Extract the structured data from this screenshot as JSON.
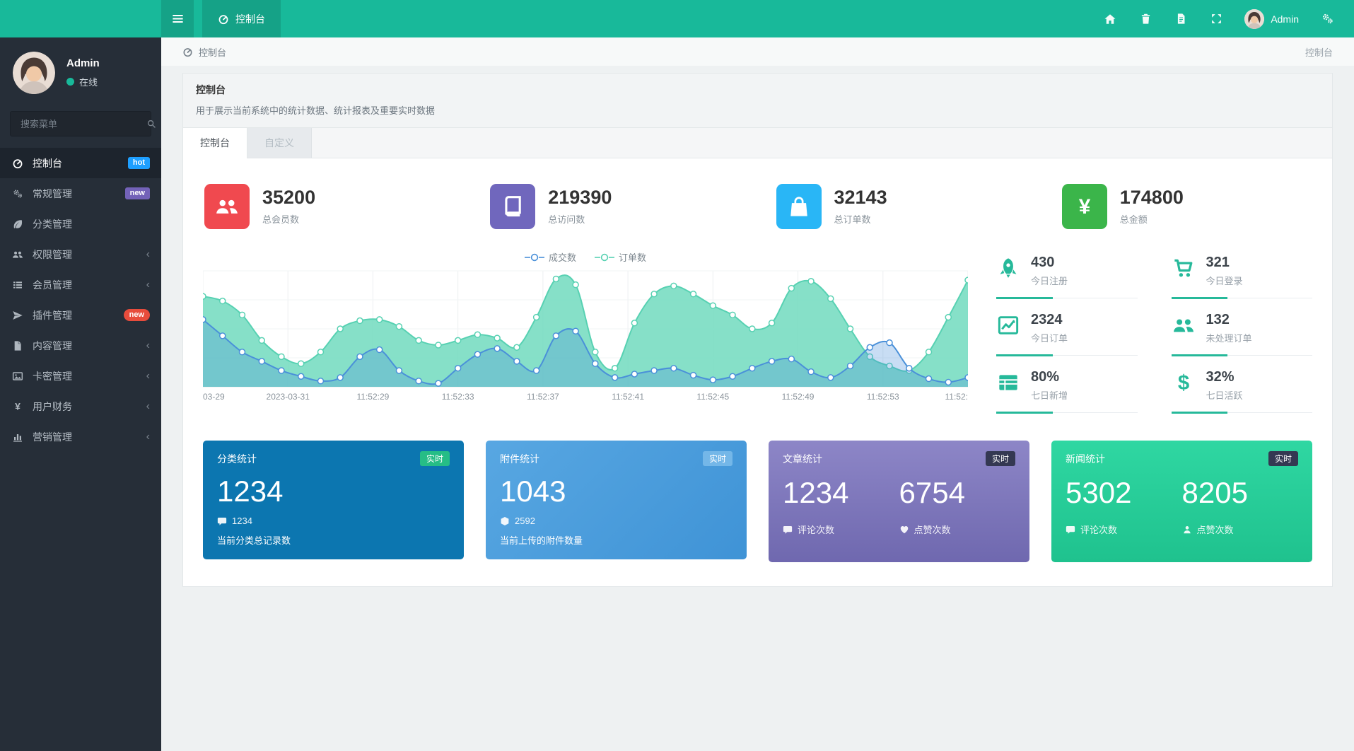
{
  "brand": {
    "accent": "#18b99a"
  },
  "topbar": {
    "tab_label": "控制台",
    "user_name": "Admin"
  },
  "sidebar": {
    "user": {
      "name": "Admin",
      "status": "在线",
      "status_color": "#18b99a"
    },
    "search_placeholder": "搜索菜单",
    "items": [
      {
        "label": "控制台",
        "icon": "dashboard-icon",
        "badge": {
          "text": "hot",
          "bg": "#1e9fff"
        },
        "active": true
      },
      {
        "label": "常规管理",
        "icon": "cogs-icon",
        "badge": {
          "text": "new",
          "bg": "#7362b8"
        }
      },
      {
        "label": "分类管理",
        "icon": "leaf-icon"
      },
      {
        "label": "权限管理",
        "icon": "users-icon",
        "arrow": "‹"
      },
      {
        "label": "会员管理",
        "icon": "list-icon",
        "arrow": "‹"
      },
      {
        "label": "插件管理",
        "icon": "paper-plane-icon",
        "badge": {
          "text": "new",
          "bg": "#e74c3c"
        }
      },
      {
        "label": "内容管理",
        "icon": "file-icon",
        "arrow": "‹"
      },
      {
        "label": "卡密管理",
        "icon": "image-icon",
        "arrow": "‹"
      },
      {
        "label": "用户财务",
        "icon": "yen-icon",
        "arrow": "‹"
      },
      {
        "label": "营销管理",
        "icon": "chart-bar-icon",
        "arrow": "‹"
      }
    ]
  },
  "breadcrumb": {
    "label": "控制台",
    "right": "控制台"
  },
  "panel": {
    "title": "控制台",
    "desc": "用于展示当前系统中的统计数据、统计报表及重要实时数据",
    "tabs": [
      {
        "label": "控制台"
      },
      {
        "label": "自定义"
      }
    ]
  },
  "stat_cards": [
    {
      "value": "35200",
      "label": "总会员数",
      "icon_bg": "#f0494f",
      "icon": "users-icon"
    },
    {
      "value": "219390",
      "label": "总访问数",
      "icon_bg": "#7067bd",
      "icon": "book-icon"
    },
    {
      "value": "32143",
      "label": "总订单数",
      "icon_bg": "#29b6f6",
      "icon": "shopping-bag-icon"
    },
    {
      "value": "174800",
      "label": "总金额",
      "icon_bg": "#3bb54a",
      "icon": "yen-icon"
    }
  ],
  "chart_data": {
    "type": "line",
    "smooth": true,
    "markers": true,
    "grid": true,
    "legend_position": "top",
    "ylim": [
      0,
      100
    ],
    "x_labels": [
      "03-29",
      "2023-03-31",
      "11:52:29",
      "11:52:33",
      "11:52:37",
      "11:52:41",
      "11:52:45",
      "11:52:49",
      "11:52:53",
      "11:52:"
    ],
    "series": [
      {
        "name": "成交数",
        "color": "#4a90d9",
        "fill": "rgba(74,144,217,0.30)",
        "values": [
          58,
          44,
          30,
          22,
          14,
          9,
          5,
          8,
          26,
          32,
          14,
          5,
          3,
          16,
          28,
          33,
          22,
          14,
          44,
          48,
          20,
          8,
          11,
          14,
          16,
          10,
          6,
          9,
          16,
          22,
          24,
          13,
          8,
          18,
          34,
          38,
          16,
          7,
          4,
          8
        ]
      },
      {
        "name": "订单数",
        "color": "#57d1b2",
        "fill": "rgba(113,218,190,0.85)",
        "values": [
          78,
          74,
          62,
          40,
          26,
          20,
          30,
          50,
          57,
          58,
          52,
          40,
          36,
          40,
          45,
          42,
          34,
          60,
          93,
          88,
          30,
          16,
          55,
          80,
          87,
          80,
          70,
          62,
          50,
          55,
          85,
          91,
          76,
          50,
          26,
          18,
          14,
          30,
          60,
          92
        ]
      }
    ]
  },
  "quick_stats": {
    "accent": "#26b99a",
    "items": [
      {
        "icon": "rocket-icon",
        "value": "430",
        "label": "今日注册"
      },
      {
        "icon": "cart-icon",
        "value": "321",
        "label": "今日登录"
      },
      {
        "icon": "chart-line-icon",
        "value": "2324",
        "label": "今日订单"
      },
      {
        "icon": "users-icon",
        "value": "132",
        "label": "未处理订单"
      },
      {
        "icon": "table-icon",
        "value": "80%",
        "label": "七日新增"
      },
      {
        "icon": "dollar-icon",
        "value": "32%",
        "label": "七日活跃"
      }
    ]
  },
  "bottom_cards": [
    {
      "title": "分类统计",
      "badge": "实时",
      "badge_bg": "#26bd86",
      "bg": "#0c76b0",
      "main": "1234",
      "sub_icon": "comment-icon",
      "sub_value": "1234",
      "desc": "当前分类总记录数"
    },
    {
      "title": "附件统计",
      "badge": "实时",
      "badge_bg": "#74b7e8",
      "bg": "linear-gradient(135deg,#58a7e2,#3f93d6)",
      "main": "1043",
      "sub_icon": "box-icon",
      "sub_value": "2592",
      "desc": "当前上传的附件数量"
    },
    {
      "title": "文章统计",
      "badge": "实时",
      "badge_bg": "#343852",
      "bg": "linear-gradient(180deg,#8d86c7,#6f68af)",
      "cols": [
        {
          "value": "1234",
          "icon": "comment-icon",
          "label": "评论次数"
        },
        {
          "value": "6754",
          "icon": "heart-icon",
          "label": "点赞次数"
        }
      ]
    },
    {
      "title": "新闻统计",
      "badge": "实时",
      "badge_bg": "#343852",
      "bg": "linear-gradient(180deg,#2fd7a2,#1fc28e)",
      "cols": [
        {
          "value": "5302",
          "icon": "comment-icon",
          "label": "评论次数"
        },
        {
          "value": "8205",
          "icon": "user-icon",
          "label": "点赞次数"
        }
      ]
    }
  ]
}
